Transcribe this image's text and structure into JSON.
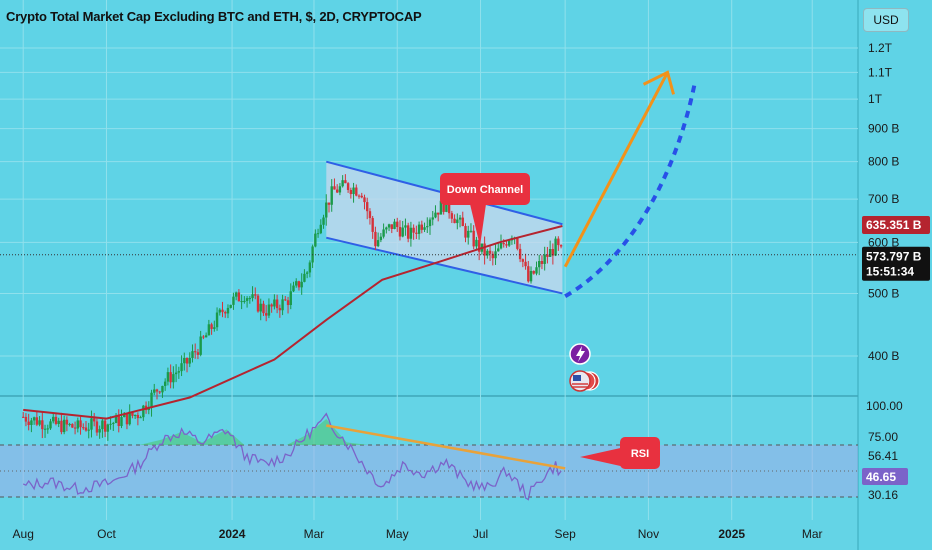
{
  "header": {
    "title": "Crypto Total Market Cap Excluding BTC and ETH, $, 2D, CRYPTOCAP",
    "currency_button": "USD"
  },
  "colors": {
    "background": "#5fd3e6",
    "candle_up": "#1a9a4a",
    "candle_down": "#d5313a",
    "moving_average": "#b5242f",
    "channel_line": "#2f5fe6",
    "channel_fill": "#c9d8ee",
    "arrow_orange": "#f2921a",
    "projection_blue": "#2850e8",
    "rsi_line": "#7b63c9",
    "rsi_trend": "#e8a23a",
    "callout_red": "#e8313f"
  },
  "annotations": {
    "down_channel": "Down Channel",
    "rsi_callout": "RSI"
  },
  "icons": [
    "lightning-icon",
    "us-flag-coins-icon"
  ],
  "chart_data": [
    {
      "type": "candlestick",
      "title": "Crypto Total Market Cap Excluding BTC and ETH, $, 2D, CRYPTOCAP",
      "y_scale": "log",
      "y_tick_labels": [
        "1.2T",
        "1.1T",
        "1T",
        "900 B",
        "800 B",
        "700 B",
        "600 B",
        "500 B",
        "400 B"
      ],
      "y_tick_values": [
        1200,
        1100,
        1000,
        900,
        800,
        700,
        600,
        500,
        400
      ],
      "y_units": "billion USD",
      "x_tick_labels": [
        "Aug",
        "Oct",
        "2024",
        "Mar",
        "May",
        "Jul",
        "Sep",
        "Nov",
        "2025",
        "Mar"
      ],
      "price_series": [
        [
          "2023-08-01",
          322
        ],
        [
          "2023-08-20",
          314
        ],
        [
          "2023-09-10",
          310
        ],
        [
          "2023-10-05",
          315
        ],
        [
          "2023-10-25",
          326
        ],
        [
          "2023-11-10",
          362
        ],
        [
          "2023-11-28",
          388
        ],
        [
          "2023-12-10",
          420
        ],
        [
          "2023-12-28",
          480
        ],
        [
          "2024-01-10",
          500
        ],
        [
          "2024-01-25",
          470
        ],
        [
          "2024-02-10",
          486
        ],
        [
          "2024-02-25",
          540
        ],
        [
          "2024-03-05",
          650
        ],
        [
          "2024-03-15",
          720
        ],
        [
          "2024-03-25",
          735
        ],
        [
          "2024-04-05",
          720
        ],
        [
          "2024-04-15",
          600
        ],
        [
          "2024-04-28",
          640
        ],
        [
          "2024-05-10",
          615
        ],
        [
          "2024-05-25",
          660
        ],
        [
          "2024-06-05",
          690
        ],
        [
          "2024-06-18",
          630
        ],
        [
          "2024-07-01",
          585
        ],
        [
          "2024-07-10",
          565
        ],
        [
          "2024-07-25",
          625
        ],
        [
          "2024-08-05",
          522
        ],
        [
          "2024-08-15",
          560
        ],
        [
          "2024-08-25",
          592
        ],
        [
          "2024-08-30",
          574
        ]
      ],
      "moving_average": [
        [
          "2023-08-01",
          330
        ],
        [
          "2023-10-01",
          320
        ],
        [
          "2023-12-01",
          345
        ],
        [
          "2024-02-01",
          395
        ],
        [
          "2024-03-10",
          455
        ],
        [
          "2024-04-20",
          525
        ],
        [
          "2024-06-01",
          560
        ],
        [
          "2024-07-15",
          600
        ],
        [
          "2024-08-30",
          636
        ]
      ],
      "down_channel": {
        "upper": [
          [
            "2024-03-10",
            800
          ],
          [
            "2024-08-30",
            640
          ]
        ],
        "lower": [
          [
            "2024-03-10",
            610
          ],
          [
            "2024-08-30",
            500
          ]
        ]
      },
      "projections": {
        "orange_arrow": [
          [
            "2024-09-01",
            550
          ],
          [
            "2024-11-15",
            1100
          ]
        ],
        "blue_dashed": [
          [
            "2024-09-01",
            495
          ],
          [
            "2024-10-15",
            560
          ],
          [
            "2024-11-20",
            740
          ],
          [
            "2024-12-05",
            1060
          ]
        ]
      },
      "price_labels": [
        {
          "value": "635.351 B",
          "kind": "moving-average"
        },
        {
          "value": "573.797 B",
          "kind": "last-price"
        },
        {
          "value": "15:51:34",
          "kind": "countdown"
        }
      ]
    },
    {
      "type": "line",
      "title": "",
      "indicator": "RSI",
      "y_tick_labels": [
        "100.00",
        "75.00",
        "56.41",
        "46.65",
        "30.16"
      ],
      "rsi_series": [
        [
          "2023-08-01",
          38
        ],
        [
          "2023-08-20",
          42
        ],
        [
          "2023-09-10",
          36
        ],
        [
          "2023-10-05",
          41
        ],
        [
          "2023-10-25",
          55
        ],
        [
          "2023-11-10",
          74
        ],
        [
          "2023-11-25",
          80
        ],
        [
          "2023-12-10",
          72
        ],
        [
          "2023-12-28",
          82
        ],
        [
          "2024-01-10",
          62
        ],
        [
          "2024-01-25",
          55
        ],
        [
          "2024-02-10",
          62
        ],
        [
          "2024-02-25",
          78
        ],
        [
          "2024-03-10",
          90
        ],
        [
          "2024-03-25",
          72
        ],
        [
          "2024-04-10",
          50
        ],
        [
          "2024-04-20",
          38
        ],
        [
          "2024-05-05",
          55
        ],
        [
          "2024-05-20",
          48
        ],
        [
          "2024-06-05",
          57
        ],
        [
          "2024-06-20",
          42
        ],
        [
          "2024-07-05",
          36
        ],
        [
          "2024-07-20",
          50
        ],
        [
          "2024-08-05",
          31
        ],
        [
          "2024-08-15",
          45
        ],
        [
          "2024-08-25",
          54
        ],
        [
          "2024-08-30",
          47
        ]
      ],
      "rsi_trendline": [
        [
          "2024-03-10",
          85
        ],
        [
          "2024-09-01",
          52
        ]
      ]
    }
  ]
}
